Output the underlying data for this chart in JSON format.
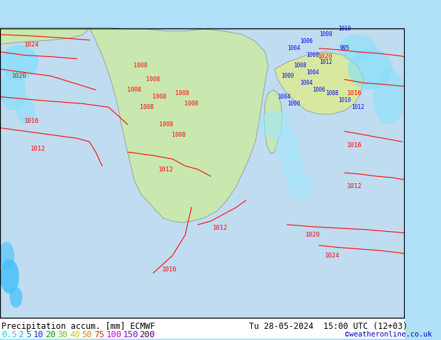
{
  "title_left": "Precipitation accum. [mm] ECMWF",
  "title_right": "Tu 28-05-2024  15:00 UTC (12+03)",
  "credit": "©weatheronline.co.uk",
  "legend_values": [
    "0.5",
    "2",
    "5",
    "10",
    "20",
    "30",
    "40",
    "50",
    "75",
    "100",
    "150",
    "200"
  ],
  "legend_colors": [
    "#00ffff",
    "#00d0ff",
    "#0090ff",
    "#0040ff",
    "#00c000",
    "#80ff00",
    "#ffff00",
    "#ffc000",
    "#ff6000",
    "#ff00ff",
    "#c000ff",
    "#600080"
  ],
  "bg_color": "#e8f4e8",
  "map_bg": "#b0e0f8",
  "bottom_bar_color": "#000000",
  "text_color": "#000000",
  "label_font_size": 9,
  "title_font_size": 8.5
}
